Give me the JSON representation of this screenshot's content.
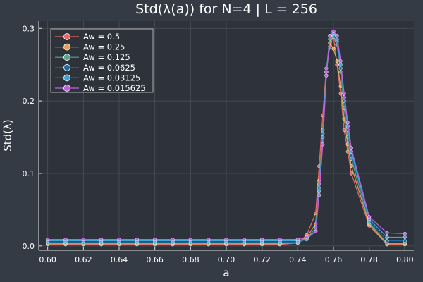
{
  "chart_data": {
    "type": "line",
    "title": "Std(λ(a)) for N=4 | L = 256",
    "xlabel": "a",
    "ylabel": "Std(λ)",
    "xlim": [
      0.595,
      0.805
    ],
    "ylim": [
      -0.006,
      0.31
    ],
    "grid": true,
    "legend_position": "top-left",
    "x_ticks": [
      {
        "value": 0.6,
        "label": "0.60"
      },
      {
        "value": 0.62,
        "label": "0.62"
      },
      {
        "value": 0.64,
        "label": "0.64"
      },
      {
        "value": 0.66,
        "label": "0.66"
      },
      {
        "value": 0.68,
        "label": "0.68"
      },
      {
        "value": 0.7,
        "label": "0.70"
      },
      {
        "value": 0.72,
        "label": "0.72"
      },
      {
        "value": 0.74,
        "label": "0.74"
      },
      {
        "value": 0.76,
        "label": "0.76"
      },
      {
        "value": 0.78,
        "label": "0.78"
      },
      {
        "value": 0.8,
        "label": "0.80"
      }
    ],
    "y_ticks": [
      {
        "value": 0.0,
        "label": "0.0"
      },
      {
        "value": 0.1,
        "label": "0.1"
      },
      {
        "value": 0.2,
        "label": "0.2"
      },
      {
        "value": 0.3,
        "label": "0.3"
      }
    ],
    "x": [
      0.6,
      0.61,
      0.62,
      0.63,
      0.64,
      0.65,
      0.66,
      0.67,
      0.68,
      0.69,
      0.7,
      0.71,
      0.72,
      0.73,
      0.74,
      0.745,
      0.75,
      0.752,
      0.754,
      0.756,
      0.758,
      0.76,
      0.762,
      0.764,
      0.766,
      0.768,
      0.77,
      0.78,
      0.79,
      0.8
    ],
    "series": [
      {
        "name": "Aw = 0.5",
        "color": "#e26a6a",
        "values": [
          0.002,
          0.002,
          0.002,
          0.002,
          0.002,
          0.002,
          0.002,
          0.002,
          0.002,
          0.002,
          0.002,
          0.002,
          0.002,
          0.002,
          0.004,
          0.015,
          0.045,
          0.11,
          0.18,
          0.245,
          0.275,
          0.29,
          0.25,
          0.21,
          0.16,
          0.13,
          0.1,
          0.028,
          0.002,
          0.002
        ]
      },
      {
        "name": "Aw = 0.25",
        "color": "#e6a050",
        "values": [
          0.003,
          0.003,
          0.003,
          0.003,
          0.003,
          0.003,
          0.003,
          0.003,
          0.003,
          0.003,
          0.003,
          0.003,
          0.003,
          0.003,
          0.005,
          0.012,
          0.03,
          0.09,
          0.16,
          0.24,
          0.28,
          0.272,
          0.255,
          0.22,
          0.175,
          0.14,
          0.11,
          0.03,
          0.003,
          0.003
        ]
      },
      {
        "name": "Aw = 0.125",
        "color": "#5fa38e",
        "values": [
          0.004,
          0.004,
          0.004,
          0.004,
          0.004,
          0.004,
          0.004,
          0.004,
          0.004,
          0.004,
          0.004,
          0.004,
          0.004,
          0.004,
          0.004,
          0.01,
          0.025,
          0.085,
          0.15,
          0.235,
          0.285,
          0.288,
          0.278,
          0.24,
          0.19,
          0.15,
          0.12,
          0.032,
          0.004,
          0.004
        ]
      },
      {
        "name": "Aw = 0.0625",
        "color": "#1e6aa0",
        "values": [
          0.005,
          0.005,
          0.005,
          0.005,
          0.005,
          0.005,
          0.005,
          0.005,
          0.005,
          0.005,
          0.005,
          0.005,
          0.005,
          0.005,
          0.005,
          0.009,
          0.022,
          0.08,
          0.155,
          0.24,
          0.29,
          0.292,
          0.282,
          0.245,
          0.2,
          0.16,
          0.125,
          0.035,
          0.007,
          0.007
        ]
      },
      {
        "name": "Aw = 0.03125",
        "color": "#3da8d8",
        "values": [
          0.007,
          0.007,
          0.007,
          0.007,
          0.007,
          0.007,
          0.007,
          0.007,
          0.007,
          0.007,
          0.007,
          0.007,
          0.007,
          0.007,
          0.007,
          0.01,
          0.02,
          0.075,
          0.15,
          0.24,
          0.29,
          0.294,
          0.285,
          0.25,
          0.205,
          0.165,
          0.13,
          0.037,
          0.012,
          0.012
        ]
      },
      {
        "name": "Aw = 0.015625",
        "color": "#c060e0",
        "values": [
          0.009,
          0.009,
          0.009,
          0.009,
          0.009,
          0.009,
          0.009,
          0.009,
          0.009,
          0.009,
          0.009,
          0.009,
          0.009,
          0.009,
          0.009,
          0.012,
          0.02,
          0.07,
          0.14,
          0.235,
          0.29,
          0.296,
          0.29,
          0.255,
          0.21,
          0.17,
          0.135,
          0.04,
          0.018,
          0.017
        ]
      }
    ]
  }
}
